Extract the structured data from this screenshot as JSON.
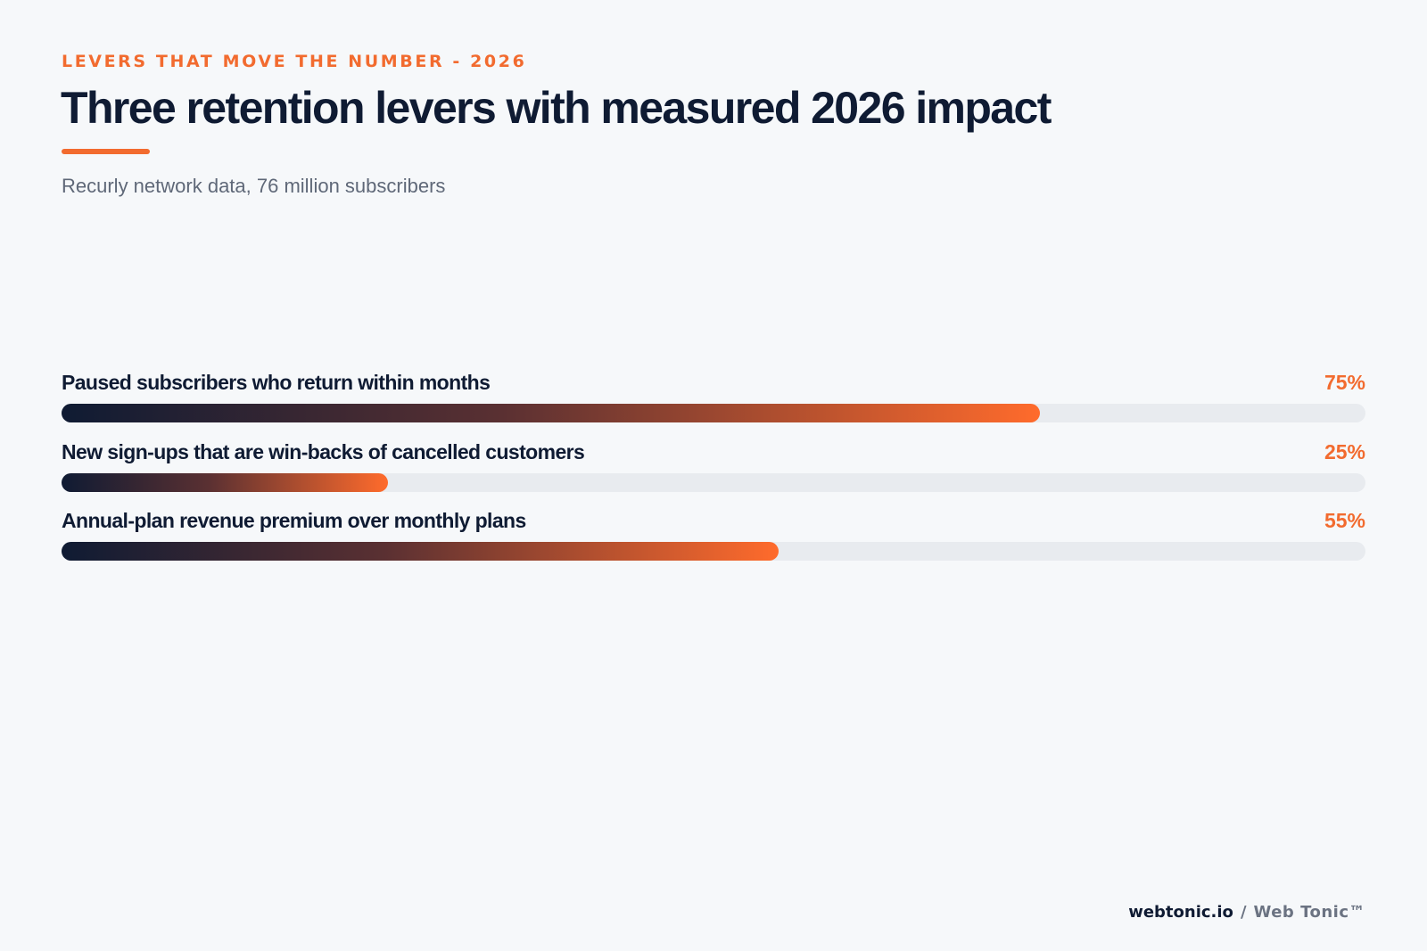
{
  "header": {
    "eyebrow": "LEVERS THAT MOVE THE NUMBER - 2026",
    "title": "Three retention levers with measured 2026 impact",
    "subtitle": "Recurly network data, 76 million subscribers"
  },
  "chart_data": {
    "type": "bar",
    "orientation": "horizontal",
    "categories": [
      "Paused subscribers who return within months",
      "New sign-ups that are win-backs of cancelled customers",
      "Annual-plan revenue premium over monthly plans"
    ],
    "values": [
      75,
      25,
      55
    ],
    "value_labels": [
      "75%",
      "25%",
      "55%"
    ],
    "xlim": [
      0,
      100
    ],
    "grid": false,
    "legend": "none"
  },
  "colors": {
    "accent": "#f26b2f",
    "text_dark": "#0f1b33",
    "track": "#e8ebef",
    "gradient_start": "#0f1b33",
    "gradient_end": "#ff6b2c"
  },
  "footer": {
    "domain": "webtonic.io",
    "separator": "/",
    "brand": "Web Tonic™"
  }
}
